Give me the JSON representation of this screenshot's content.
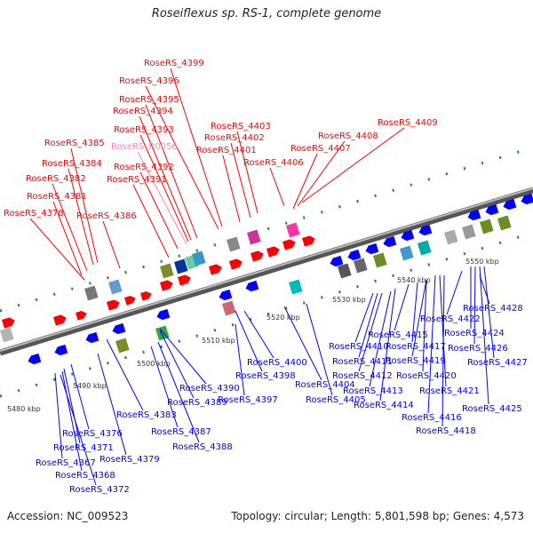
{
  "title": "Roseiflexus sp. RS-1, complete genome",
  "accession": "Accession: NC_009523",
  "topology": "Topology: circular; Length: 5,801,598 bp; Genes: 4,573",
  "colors": {
    "forward": "#ff0000",
    "reverse": "#0000ff",
    "highlight": "#ff80c0",
    "backbone": "#888888"
  },
  "kbp_labels": [
    "5480 kbp",
    "5490 kbp",
    "5500 kbp",
    "5510 kbp",
    "5520 kbp",
    "5530 kbp",
    "5540 kbp",
    "5550 kbp"
  ],
  "forward_labels": [
    "RoseRS_4399",
    "RoseRS_4396",
    "RoseRS_4395",
    "RoseRS_4394",
    "RoseRS_4393",
    "RoseRS_R0056",
    "RoseRS_4392",
    "RoseRS_4391",
    "RoseRS_4385",
    "RoseRS_4384",
    "RoseRS_4382",
    "RoseRS_4381",
    "RoseRS_4378",
    "RoseRS_4386",
    "RoseRS_4403",
    "RoseRS_4402",
    "RoseRS_4401",
    "RoseRS_4406",
    "RoseRS_4407",
    "RoseRS_4408",
    "RoseRS_4409"
  ],
  "reverse_labels": [
    "RoseRS_4428",
    "RoseRS_4422",
    "RoseRS_4415",
    "RoseRS_4424",
    "RoseRS_4410",
    "RoseRS_4417",
    "RoseRS_4426",
    "RoseRS_4411",
    "RoseRS_4419",
    "RoseRS_4427",
    "RoseRS_4412",
    "RoseRS_4420",
    "RoseRS_4413",
    "RoseRS_4421",
    "RoseRS_4414",
    "RoseRS_4425",
    "RoseRS_4416",
    "RoseRS_4418",
    "RoseRS_4400",
    "RoseRS_4398",
    "RoseRS_4404",
    "RoseRS_4405",
    "RoseRS_4397",
    "RoseRS_4390",
    "RoseRS_4389",
    "RoseRS_4383",
    "RoseRS_4387",
    "RoseRS_4388",
    "RoseRS_4376",
    "RoseRS_4371",
    "RoseRS_4379",
    "RoseRS_4367",
    "RoseRS_4368",
    "RoseRS_4372"
  ]
}
